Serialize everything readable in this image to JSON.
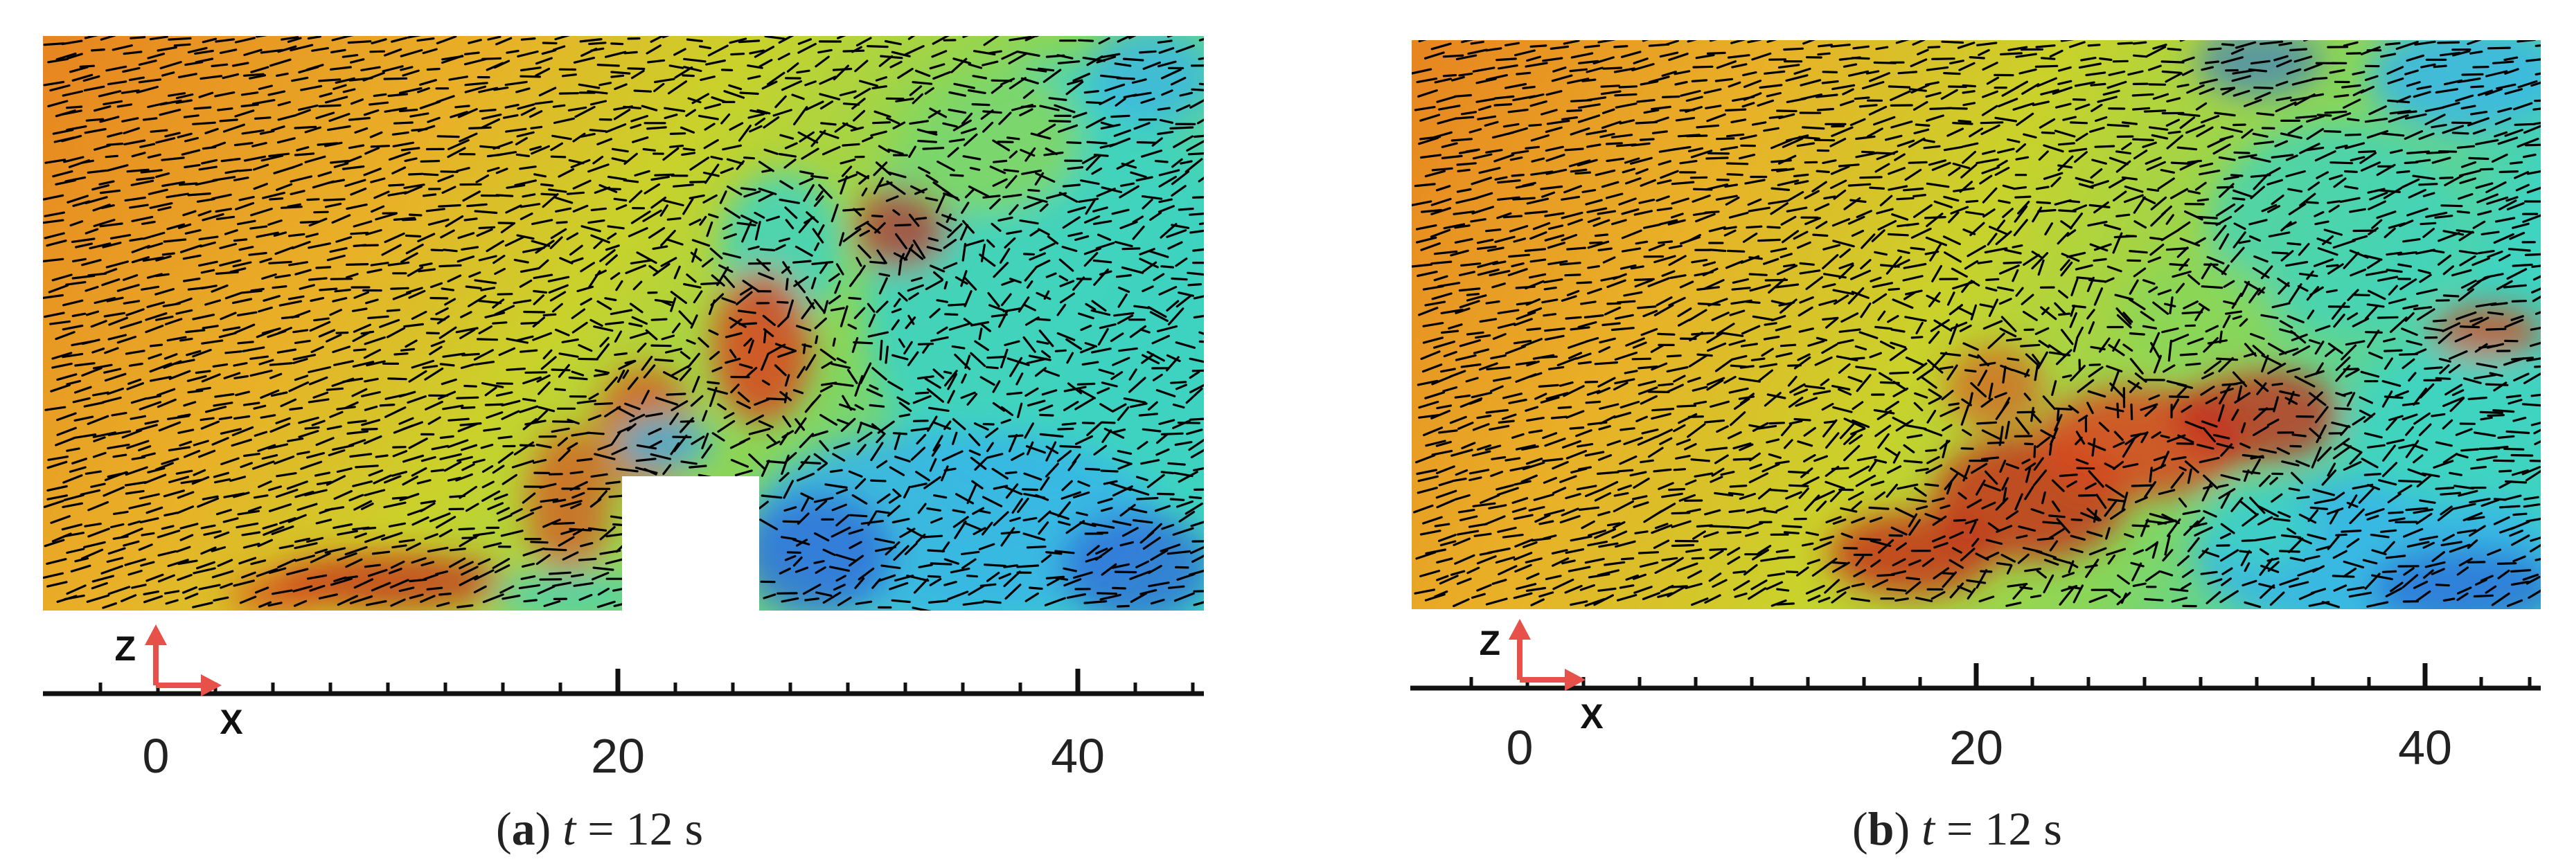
{
  "colors": {
    "background": "#ffffff",
    "arrow": "#e8504a",
    "axis": "#111111",
    "vector": "#000000",
    "colormap": [
      "#2f6fd6",
      "#39b6e6",
      "#3fd3c0",
      "#88d65a",
      "#c9d22a",
      "#e9b027",
      "#e7841f",
      "#d8471c",
      "#c42a1a"
    ]
  },
  "panels": [
    {
      "id": "a",
      "caption": {
        "open": "(",
        "letter": "a",
        "close": ")",
        "var": "t",
        "rest": " = 12 s"
      },
      "axis": {
        "x_label": "X",
        "z_label": "Z",
        "ticks": [
          "0",
          "20",
          "40"
        ]
      },
      "obstacle": true
    },
    {
      "id": "b",
      "caption": {
        "open": "(",
        "letter": "b",
        "close": ")",
        "var": "t",
        "rest": " = 12 s"
      },
      "axis": {
        "x_label": "X",
        "z_label": "Z",
        "ticks": [
          "0",
          "20",
          "40"
        ]
      },
      "obstacle": false
    }
  ]
}
